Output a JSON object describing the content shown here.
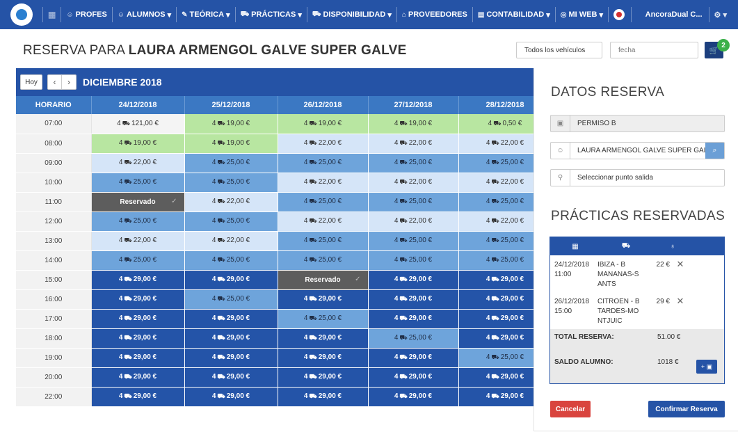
{
  "navbar": {
    "items": [
      {
        "icon": "teacher-icon",
        "glyph": "☺",
        "label": "PROFES",
        "dropdown": false
      },
      {
        "icon": "students-icon",
        "glyph": "☺",
        "label": "ALUMNOS",
        "dropdown": true
      },
      {
        "icon": "theory-icon",
        "glyph": "✎",
        "label": "TEÓRICA",
        "dropdown": true
      },
      {
        "icon": "car-icon",
        "glyph": "⛟",
        "label": "PRÁCTICAS",
        "dropdown": true
      },
      {
        "icon": "car-icon",
        "glyph": "⛟",
        "label": "DISPONIBILIDAD",
        "dropdown": true
      },
      {
        "icon": "store-icon",
        "glyph": "⌂",
        "label": "PROVEEDORES",
        "dropdown": false
      },
      {
        "icon": "accounting-icon",
        "glyph": "▤",
        "label": "CONTABILIDAD",
        "dropdown": true
      },
      {
        "icon": "web-icon",
        "glyph": "◎",
        "label": "MI WEB",
        "dropdown": true
      }
    ],
    "user": "AncoraDual C...",
    "settings_glyph": "⚙ ▾",
    "caret": "▾"
  },
  "header": {
    "title_prefix": "RESERVA PARA ",
    "title_name": "LAURA ARMENGOL GALVE SUPER GALVE",
    "vehicle_button": "Todos los vehículos",
    "date_placeholder": "fecha",
    "cart_count": "2"
  },
  "calendar": {
    "today_label": "Hoy",
    "prev": "‹",
    "next": "›",
    "month": "DICIEMBRE 2018",
    "time_header": "HORARIO",
    "days": [
      "24/12/2018",
      "25/12/2018",
      "26/12/2018",
      "27/12/2018",
      "28/12/2018"
    ],
    "rows": [
      {
        "time": "07:00",
        "cells": [
          {
            "t": "w",
            "v": "121,00 €"
          },
          {
            "t": "g",
            "v": "19,00 €"
          },
          {
            "t": "g",
            "v": "19,00 €"
          },
          {
            "t": "g",
            "v": "19,00 €"
          },
          {
            "t": "g",
            "v": "0,50 €"
          }
        ]
      },
      {
        "time": "08:00",
        "cells": [
          {
            "t": "g",
            "v": "19,00 €"
          },
          {
            "t": "g",
            "v": "19,00 €"
          },
          {
            "t": "l",
            "v": "22,00 €"
          },
          {
            "t": "l",
            "v": "22,00 €"
          },
          {
            "t": "l",
            "v": "22,00 €"
          }
        ]
      },
      {
        "time": "09:00",
        "cells": [
          {
            "t": "l",
            "v": "22,00 €"
          },
          {
            "t": "m",
            "v": "25,00 €"
          },
          {
            "t": "m",
            "v": "25,00 €"
          },
          {
            "t": "m",
            "v": "25,00 €"
          },
          {
            "t": "m",
            "v": "25,00 €"
          }
        ]
      },
      {
        "time": "10:00",
        "cells": [
          {
            "t": "m",
            "v": "25,00 €"
          },
          {
            "t": "m",
            "v": "25,00 €"
          },
          {
            "t": "l",
            "v": "22,00 €"
          },
          {
            "t": "l",
            "v": "22,00 €"
          },
          {
            "t": "l",
            "v": "22,00 €"
          }
        ]
      },
      {
        "time": "11:00",
        "cells": [
          {
            "t": "r",
            "v": "Reservado"
          },
          {
            "t": "l",
            "v": "22,00 €"
          },
          {
            "t": "m",
            "v": "25,00 €"
          },
          {
            "t": "m",
            "v": "25,00 €"
          },
          {
            "t": "m",
            "v": "25,00 €"
          }
        ]
      },
      {
        "time": "12:00",
        "cells": [
          {
            "t": "m",
            "v": "25,00 €"
          },
          {
            "t": "m",
            "v": "25,00 €"
          },
          {
            "t": "l",
            "v": "22,00 €"
          },
          {
            "t": "l",
            "v": "22,00 €"
          },
          {
            "t": "l",
            "v": "22,00 €"
          }
        ]
      },
      {
        "time": "13:00",
        "cells": [
          {
            "t": "l",
            "v": "22,00 €"
          },
          {
            "t": "l",
            "v": "22,00 €"
          },
          {
            "t": "m",
            "v": "25,00 €"
          },
          {
            "t": "m",
            "v": "25,00 €"
          },
          {
            "t": "m",
            "v": "25,00 €"
          }
        ]
      },
      {
        "time": "14:00",
        "cells": [
          {
            "t": "m",
            "v": "25,00 €"
          },
          {
            "t": "m",
            "v": "25,00 €"
          },
          {
            "t": "m",
            "v": "25,00 €"
          },
          {
            "t": "m",
            "v": "25,00 €"
          },
          {
            "t": "m",
            "v": "25,00 €"
          }
        ]
      },
      {
        "time": "15:00",
        "cells": [
          {
            "t": "d",
            "v": "29,00 €"
          },
          {
            "t": "d",
            "v": "29,00 €"
          },
          {
            "t": "r",
            "v": "Reservado"
          },
          {
            "t": "d",
            "v": "29,00 €"
          },
          {
            "t": "d",
            "v": "29,00 €"
          }
        ]
      },
      {
        "time": "16:00",
        "cells": [
          {
            "t": "d",
            "v": "29,00 €"
          },
          {
            "t": "m",
            "v": "25,00 €"
          },
          {
            "t": "d",
            "v": "29,00 €"
          },
          {
            "t": "d",
            "v": "29,00 €"
          },
          {
            "t": "d",
            "v": "29,00 €"
          }
        ]
      },
      {
        "time": "17:00",
        "cells": [
          {
            "t": "d",
            "v": "29,00 €"
          },
          {
            "t": "d",
            "v": "29,00 €"
          },
          {
            "t": "m",
            "v": "25,00 €"
          },
          {
            "t": "d",
            "v": "29,00 €"
          },
          {
            "t": "d",
            "v": "29,00 €"
          }
        ]
      },
      {
        "time": "18:00",
        "cells": [
          {
            "t": "d",
            "v": "29,00 €"
          },
          {
            "t": "d",
            "v": "29,00 €"
          },
          {
            "t": "d",
            "v": "29,00 €"
          },
          {
            "t": "m",
            "v": "25,00 €"
          },
          {
            "t": "d",
            "v": "29,00 €"
          }
        ]
      },
      {
        "time": "19:00",
        "cells": [
          {
            "t": "d",
            "v": "29,00 €"
          },
          {
            "t": "d",
            "v": "29,00 €"
          },
          {
            "t": "d",
            "v": "29,00 €"
          },
          {
            "t": "d",
            "v": "29,00 €"
          },
          {
            "t": "m",
            "v": "25,00 €"
          }
        ]
      },
      {
        "time": "20:00",
        "cells": [
          {
            "t": "d",
            "v": "29,00 €"
          },
          {
            "t": "d",
            "v": "29,00 €"
          },
          {
            "t": "d",
            "v": "29,00 €"
          },
          {
            "t": "d",
            "v": "29,00 €"
          },
          {
            "t": "d",
            "v": "29,00 €"
          }
        ]
      },
      {
        "time": "22:00",
        "cells": [
          {
            "t": "d",
            "v": "29,00 €"
          },
          {
            "t": "d",
            "v": "29,00 €"
          },
          {
            "t": "d",
            "v": "29,00 €"
          },
          {
            "t": "d",
            "v": "29,00 €"
          },
          {
            "t": "d",
            "v": "29,00 €"
          }
        ]
      }
    ],
    "seats": "4",
    "car_glyph": "⛟",
    "reserved_tick": "✓"
  },
  "panel": {
    "datos_title": "DATOS RESERVA",
    "permiso": "PERMISO B",
    "alumno": "LAURA ARMENGOL GALVE SUPER GALVE",
    "punto_salida_placeholder": "Seleccionar punto salida",
    "practicas_title": "PRÁCTICAS RESERVADAS",
    "reservas": [
      {
        "date": "24/12/2018",
        "time": "11:00",
        "vehicle": "IBIZA - B",
        "route": "MANANAS-SANTS",
        "price": "22 €"
      },
      {
        "date": "26/12/2018",
        "time": "15:00",
        "vehicle": "CITROEN - B",
        "route": "TARDES-MONTJUIC",
        "price": "29 €"
      }
    ],
    "total_label": "TOTAL RESERVA:",
    "total_value": "51.00 €",
    "saldo_label": "SALDO ALUMNO:",
    "saldo_value": "1018 €",
    "saldo_button": "+ ▣",
    "cancel": "Cancelar",
    "confirm": "Confirmar Reserva"
  },
  "colors": {
    "nav": "#2553a6",
    "green": "#b8e6a1",
    "light": "#d5e5f8",
    "mid": "#6ea4db",
    "dark": "#2454a8",
    "reserved": "#5d5d5d",
    "cancel": "#d9443e",
    "badge": "#3cb04a"
  }
}
